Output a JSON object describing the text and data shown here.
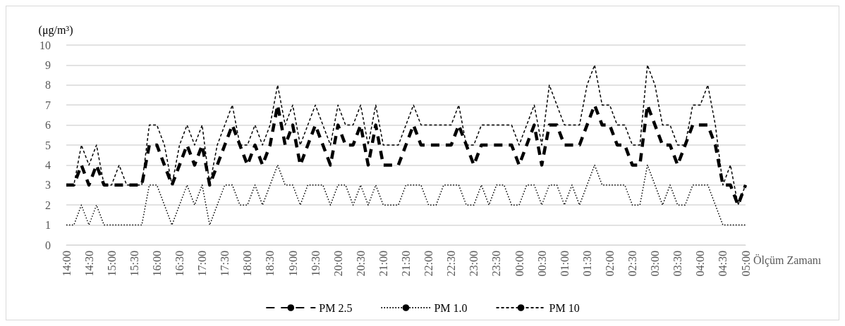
{
  "chart_data": {
    "type": "line",
    "xlabel": "Ölçüm Zamanı",
    "ylabel": "(μg/m³)",
    "categories": [
      "14:00",
      null,
      null,
      "14:30",
      null,
      null,
      "15:00",
      null,
      null,
      "15:30",
      null,
      null,
      "16:00",
      null,
      null,
      "16:30",
      null,
      null,
      "17:00",
      null,
      null,
      "17:30",
      null,
      null,
      "18:00",
      null,
      null,
      "18:30",
      null,
      null,
      "19:00",
      null,
      null,
      "19:30",
      null,
      null,
      "20:00",
      null,
      null,
      "20:30",
      null,
      null,
      "21:00",
      null,
      null,
      "21:30",
      null,
      null,
      "22:00",
      null,
      null,
      "22:30",
      null,
      null,
      "23:00",
      null,
      null,
      "23:30",
      null,
      null,
      "00:00",
      null,
      null,
      "00:30",
      null,
      null,
      "01:00",
      null,
      null,
      "01:30",
      null,
      null,
      "02:00",
      null,
      null,
      "02:30",
      null,
      null,
      "03:00",
      null,
      null,
      "03:30",
      null,
      null,
      "04:00",
      null,
      null,
      "04:30",
      null,
      null,
      "05:00"
    ],
    "series": [
      {
        "name": "PM 2.5",
        "color": "#000000",
        "line_style": "dashed",
        "values": [
          3,
          3,
          4,
          3,
          4,
          3,
          3,
          3,
          3,
          3,
          3,
          5,
          5,
          4,
          3,
          4,
          5,
          4,
          5,
          3,
          4,
          5,
          6,
          5,
          4,
          5,
          4,
          5,
          7,
          5,
          6,
          4,
          5,
          6,
          5,
          4,
          6,
          5,
          5,
          6,
          4,
          6,
          4,
          4,
          4,
          5,
          6,
          5,
          5,
          5,
          5,
          5,
          6,
          5,
          4,
          5,
          5,
          5,
          5,
          5,
          4,
          5,
          6,
          4,
          6,
          6,
          5,
          5,
          5,
          6,
          7,
          6,
          6,
          5,
          5,
          4,
          4,
          7,
          6,
          5,
          5,
          4,
          5,
          6,
          6,
          6,
          5,
          3,
          3,
          2,
          3
        ]
      },
      {
        "name": "PM 1.0",
        "color": "#000000",
        "line_style": "dotted",
        "values": [
          1,
          1,
          2,
          1,
          2,
          1,
          1,
          1,
          1,
          1,
          1,
          3,
          3,
          2,
          1,
          2,
          3,
          2,
          3,
          1,
          2,
          3,
          3,
          2,
          2,
          3,
          2,
          3,
          4,
          3,
          3,
          2,
          3,
          3,
          3,
          2,
          3,
          3,
          2,
          3,
          2,
          3,
          2,
          2,
          2,
          3,
          3,
          3,
          2,
          2,
          3,
          3,
          3,
          2,
          2,
          3,
          2,
          3,
          3,
          2,
          2,
          3,
          3,
          2,
          3,
          3,
          2,
          3,
          2,
          3,
          4,
          3,
          3,
          3,
          3,
          2,
          2,
          4,
          3,
          2,
          3,
          2,
          2,
          3,
          3,
          3,
          2,
          1,
          1,
          1,
          1
        ]
      },
      {
        "name": "PM 10",
        "color": "#000000",
        "line_style": "dashed",
        "values": [
          3,
          3,
          5,
          4,
          5,
          3,
          3,
          4,
          3,
          3,
          3,
          6,
          6,
          5,
          3,
          5,
          6,
          5,
          6,
          3,
          5,
          6,
          7,
          5,
          5,
          6,
          5,
          6,
          8,
          6,
          7,
          5,
          6,
          7,
          6,
          5,
          7,
          6,
          6,
          7,
          5,
          7,
          5,
          5,
          5,
          6,
          7,
          6,
          6,
          6,
          6,
          6,
          7,
          5,
          5,
          6,
          6,
          6,
          6,
          6,
          5,
          6,
          7,
          5,
          8,
          7,
          6,
          6,
          6,
          8,
          9,
          7,
          7,
          6,
          6,
          5,
          5,
          9,
          8,
          6,
          6,
          5,
          5,
          7,
          7,
          8,
          6,
          3,
          4,
          2,
          3
        ]
      }
    ],
    "ylim": [
      0,
      10
    ],
    "yticks": [
      0,
      1,
      2,
      3,
      4,
      5,
      6,
      7,
      8,
      9,
      10
    ],
    "grid": "y",
    "legend": "bottom",
    "marker": "none"
  }
}
